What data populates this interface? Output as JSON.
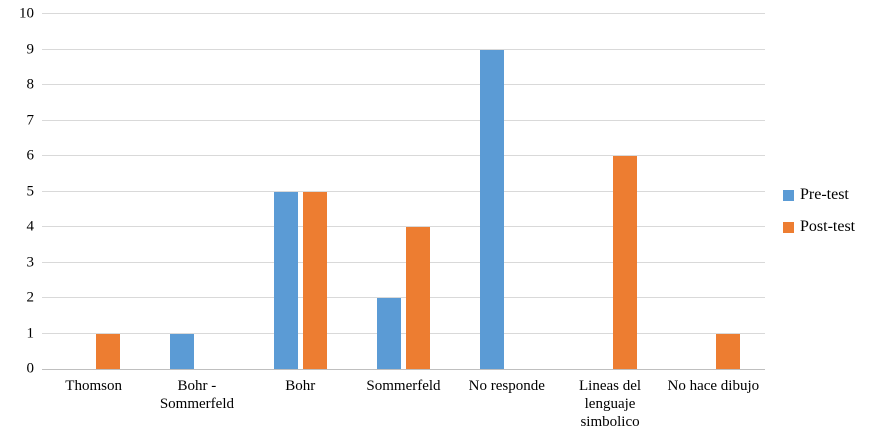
{
  "chart_data": {
    "type": "bar",
    "title": "",
    "xlabel": "",
    "ylabel": "",
    "categories": [
      "Thomson",
      "Bohr - Sommerfeld",
      "Bohr",
      "Sommerfeld",
      "No responde",
      "Lineas del lenguaje simbolico",
      "No hace dibujo"
    ],
    "series": [
      {
        "name": "Pre-test",
        "color": "#5B9BD5",
        "values": [
          0,
          1,
          5,
          2,
          9,
          0,
          0
        ]
      },
      {
        "name": "Post-test",
        "color": "#ED7D31",
        "values": [
          1,
          0,
          5,
          4,
          0,
          6,
          1
        ]
      }
    ],
    "ylim": [
      0,
      10
    ],
    "ytick_step": 1,
    "ytick_labels": [
      "0",
      "1",
      "2",
      "3",
      "4",
      "5",
      "6",
      "7",
      "8",
      "9",
      "10"
    ],
    "grid": "horizontal",
    "legend_position": "right",
    "colors": {
      "gridline": "#d9d9d9",
      "axis_line": "#bfbfbf",
      "text": "#000000",
      "background": "#ffffff"
    }
  }
}
